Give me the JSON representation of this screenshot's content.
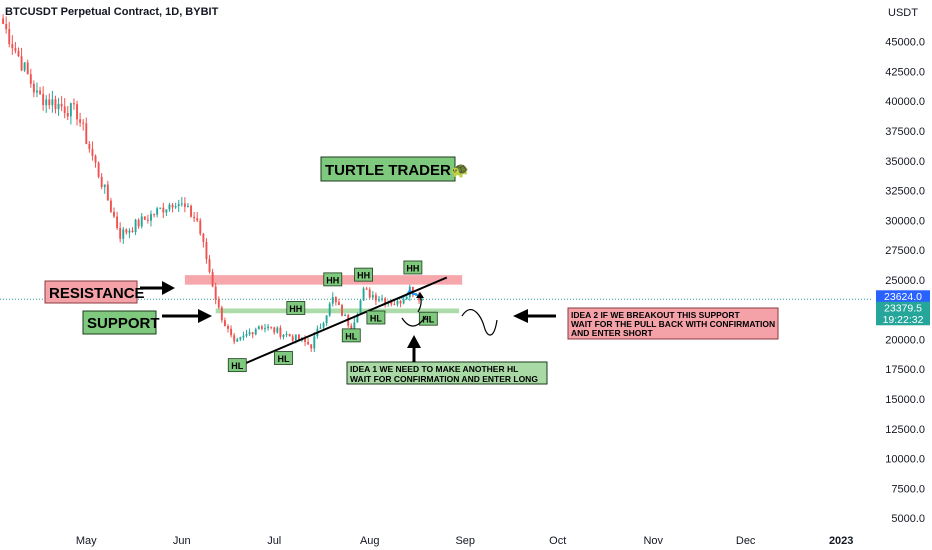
{
  "header": {
    "symbol_title": "BTCUSDT Perpetual Contract, 1D, BYBIT"
  },
  "colors": {
    "up": "#26a69a",
    "down": "#ef5350",
    "resistance_zone": "#f4a2a8",
    "support_zone": "#a9d9a5",
    "label_green_bg": "#7fc97f",
    "label_red_bg": "#f4a2a8",
    "price_tag_blue": "#2962ff",
    "price_tag_green": "#26a69a",
    "dotted_line": "#26a69a",
    "trendline": "#000000",
    "ma_line": "#2196f3"
  },
  "chart_data": {
    "type": "candlestick",
    "title": "BTCUSDT Perpetual Contract, 1D, BYBIT",
    "y_axis": {
      "unit": "USDT",
      "ticks": [
        "45000.0",
        "42500.0",
        "40000.0",
        "37500.0",
        "35000.0",
        "32500.0",
        "30000.0",
        "27500.0",
        "25000.0",
        "22500.0",
        "20000.0",
        "17500.0",
        "15000.0",
        "12500.0",
        "10000.0",
        "7500.0",
        "5000.0"
      ],
      "range": [
        4000,
        48500
      ],
      "position": "right"
    },
    "x_axis": {
      "ticks": [
        "May",
        "Jun",
        "Jul",
        "Aug",
        "Sep",
        "Oct",
        "Nov",
        "Dec",
        "2023"
      ],
      "tick_dates": [
        "2022-05-01",
        "2022-06-01",
        "2022-07-01",
        "2022-08-01",
        "2022-09-01",
        "2022-10-01",
        "2022-11-01",
        "2022-12-01",
        "2023-01-01"
      ],
      "range": [
        "2022-04-03",
        "2023-01-11"
      ]
    },
    "price_tags": [
      {
        "value": "23624.0",
        "style": "blue",
        "price": 23624
      },
      {
        "value": "23379.5",
        "style": "green",
        "price": 23379.5
      },
      {
        "value": "19:22:32",
        "style": "green",
        "price": 22500
      }
    ],
    "current_price": 23379.5,
    "zones": [
      {
        "name": "resistance",
        "low": 24600,
        "high": 25400,
        "from": "2022-06-02",
        "to": "2022-08-31"
      },
      {
        "name": "support",
        "low": 22200,
        "high": 22600,
        "from": "2022-06-12",
        "to": "2022-08-30"
      }
    ],
    "trendline": {
      "from": [
        "2022-06-18",
        17600
      ],
      "to": [
        "2022-08-26",
        25200
      ]
    },
    "key_prices": [
      {
        "date": "2022-04-04",
        "price": 46500
      },
      {
        "date": "2022-04-15",
        "price": 40500
      },
      {
        "date": "2022-04-28",
        "price": 39000
      },
      {
        "date": "2022-05-09",
        "price": 31000
      },
      {
        "date": "2022-05-12",
        "price": 28800
      },
      {
        "date": "2022-05-30",
        "price": 31700
      },
      {
        "date": "2022-06-06",
        "price": 30000
      },
      {
        "date": "2022-06-13",
        "price": 22500
      },
      {
        "date": "2022-06-18",
        "price": 19500
      },
      {
        "date": "2022-06-26",
        "price": 21200
      },
      {
        "date": "2022-07-06",
        "price": 20300
      },
      {
        "date": "2022-07-13",
        "price": 19500
      },
      {
        "date": "2022-07-20",
        "price": 23400
      },
      {
        "date": "2022-07-26",
        "price": 21000
      },
      {
        "date": "2022-07-30",
        "price": 24000
      },
      {
        "date": "2022-08-10",
        "price": 23000
      },
      {
        "date": "2022-08-14",
        "price": 24300
      },
      {
        "date": "2022-08-18",
        "price": 23379.5
      }
    ],
    "annotations": {
      "turtle_trader": "TURTLE TRADER🐢",
      "resistance_label": "RESISTANCE",
      "support_label": "SUPPORT",
      "idea1_line1": "IDEA 1 WE NEED TO MAKE ANOTHER HL",
      "idea1_line2": "WAIT  FOR CONFIRMATION  AND ENTER LONG",
      "idea2_line1": "IDEA 2 IF WE BREAKOUT THIS SUPPORT",
      "idea2_line2": "WAIT FOR THE PULL BACK WITH CONFIRMATION",
      "idea2_line3": "AND ENTER SHORT",
      "swing_labels": [
        {
          "text": "HL",
          "date": "2022-06-19",
          "price": 17800
        },
        {
          "text": "HL",
          "date": "2022-07-04",
          "price": 18400
        },
        {
          "text": "HH",
          "date": "2022-07-08",
          "price": 22600
        },
        {
          "text": "HH",
          "date": "2022-07-20",
          "price": 25000
        },
        {
          "text": "HL",
          "date": "2022-07-26",
          "price": 20300
        },
        {
          "text": "HH",
          "date": "2022-07-30",
          "price": 25400
        },
        {
          "text": "HL",
          "date": "2022-08-03",
          "price": 21800
        },
        {
          "text": "HH",
          "date": "2022-08-15",
          "price": 26000
        },
        {
          "text": "HL",
          "date": "2022-08-20",
          "price": 21700
        }
      ]
    },
    "grid": false,
    "legend": "none"
  }
}
